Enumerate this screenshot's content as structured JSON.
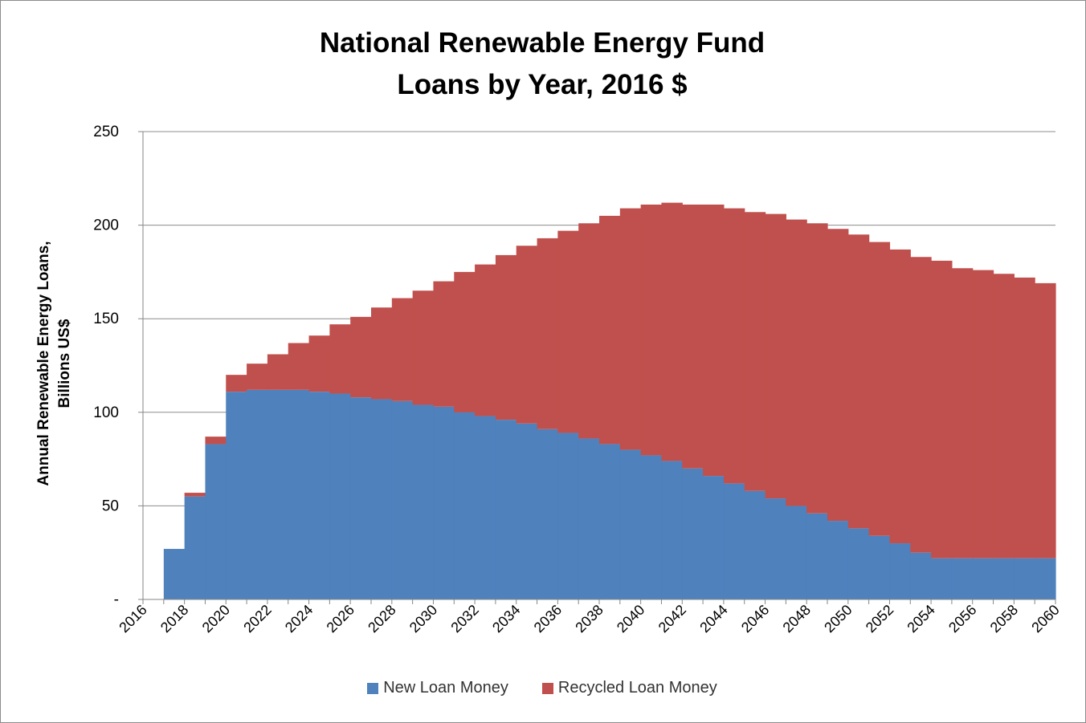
{
  "chart_data": {
    "type": "bar",
    "stacked": true,
    "title_lines": [
      "National Renewable Energy Fund",
      "Loans by Year, 2016 $"
    ],
    "ylabel_lines": [
      "Annual Renewable Energy Loans,",
      "Billions US$"
    ],
    "xlabel": "",
    "ylim": [
      0,
      250
    ],
    "yticks": [
      {
        "value": 0,
        "label": "-"
      },
      {
        "value": 50,
        "label": "50"
      },
      {
        "value": 100,
        "label": "100"
      },
      {
        "value": 150,
        "label": "150"
      },
      {
        "value": 200,
        "label": "200"
      },
      {
        "value": 250,
        "label": "250"
      }
    ],
    "grid": true,
    "legend_position": "bottom",
    "x_tick_labels": [
      "2016",
      "2018",
      "2020",
      "2022",
      "2024",
      "2026",
      "2028",
      "2030",
      "2032",
      "2034",
      "2036",
      "2038",
      "2040",
      "2042",
      "2044",
      "2046",
      "2048",
      "2050",
      "2052",
      "2054",
      "2056",
      "2058",
      "2060"
    ],
    "categories": [
      2016,
      2017,
      2018,
      2019,
      2020,
      2021,
      2022,
      2023,
      2024,
      2025,
      2026,
      2027,
      2028,
      2029,
      2030,
      2031,
      2032,
      2033,
      2034,
      2035,
      2036,
      2037,
      2038,
      2039,
      2040,
      2041,
      2042,
      2043,
      2044,
      2045,
      2046,
      2047,
      2048,
      2049,
      2050,
      2051,
      2052,
      2053,
      2054,
      2055,
      2056,
      2057,
      2058,
      2059
    ],
    "series": [
      {
        "name": "New Loan Money",
        "color": "#4f81bd",
        "values": [
          0,
          27,
          55,
          83,
          111,
          112,
          112,
          112,
          111,
          110,
          108,
          107,
          106,
          104,
          103,
          100,
          98,
          96,
          94,
          91,
          89,
          86,
          83,
          80,
          77,
          74,
          70,
          66,
          62,
          58,
          54,
          50,
          46,
          42,
          38,
          34,
          30,
          25,
          22,
          22,
          22,
          22,
          22,
          22
        ]
      },
      {
        "name": "Recycled Loan Money",
        "color": "#c0504d",
        "values": [
          0,
          0,
          2,
          4,
          9,
          14,
          19,
          25,
          30,
          37,
          43,
          49,
          55,
          61,
          67,
          75,
          81,
          88,
          95,
          102,
          108,
          115,
          122,
          129,
          134,
          138,
          141,
          145,
          147,
          149,
          152,
          153,
          155,
          156,
          157,
          157,
          157,
          158,
          159,
          155,
          154,
          152,
          150,
          147
        ]
      }
    ]
  }
}
